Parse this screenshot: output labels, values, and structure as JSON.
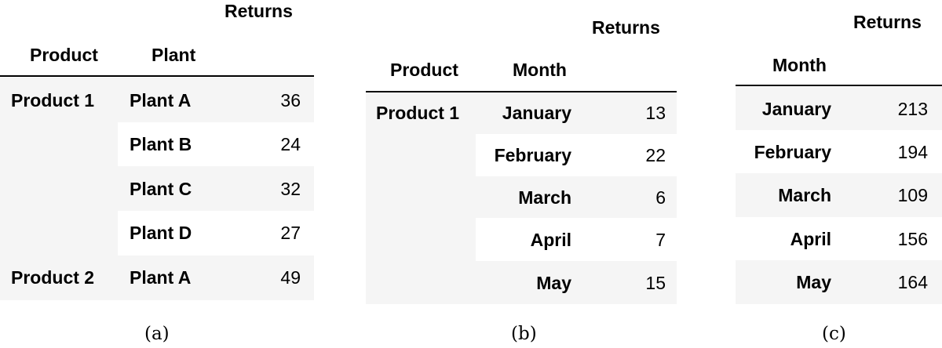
{
  "tables": {
    "a": {
      "caption": "(a)",
      "header": {
        "value": "Returns",
        "index1": "Product",
        "index2": "Plant"
      },
      "rows": [
        {
          "product": "Product 1",
          "plant": "Plant A",
          "value": "36"
        },
        {
          "product": "",
          "plant": "Plant B",
          "value": "24"
        },
        {
          "product": "",
          "plant": "Plant C",
          "value": "32"
        },
        {
          "product": "",
          "plant": "Plant D",
          "value": "27"
        },
        {
          "product": "Product 2",
          "plant": "Plant A",
          "value": "49"
        }
      ]
    },
    "b": {
      "caption": "(b)",
      "header": {
        "value": "Returns",
        "index1": "Product",
        "index2": "Month"
      },
      "rows": [
        {
          "product": "Product 1",
          "month": "January",
          "value": "13"
        },
        {
          "product": "",
          "month": "February",
          "value": "22"
        },
        {
          "product": "",
          "month": "March",
          "value": "6"
        },
        {
          "product": "",
          "month": "April",
          "value": "7"
        },
        {
          "product": "",
          "month": "May",
          "value": "15"
        }
      ]
    },
    "c": {
      "caption": "(c)",
      "header": {
        "value": "Returns",
        "index1": "Month"
      },
      "rows": [
        {
          "month": "January",
          "value": "213"
        },
        {
          "month": "February",
          "value": "194"
        },
        {
          "month": "March",
          "value": "109"
        },
        {
          "month": "April",
          "value": "156"
        },
        {
          "month": "May",
          "value": "164"
        }
      ]
    }
  },
  "colors": {
    "stripe": "#f5f5f5",
    "text": "#000000",
    "rule": "#000000"
  }
}
